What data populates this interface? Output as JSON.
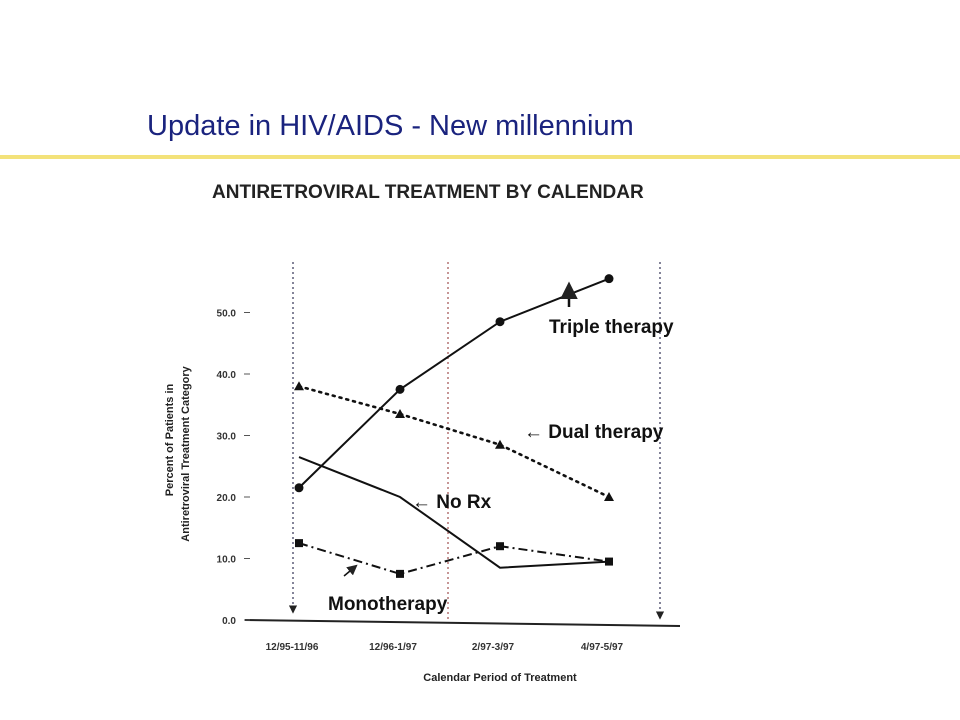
{
  "slide": {
    "title": "Update in HIV/AIDS - New millennium",
    "accent_color": "#f3e27a",
    "title_color": "#1a237e"
  },
  "chart_data": {
    "type": "line",
    "title": "ANTIRETROVIRAL TREATMENT BY CALENDAR",
    "xlabel": "Calendar Period of Treatment",
    "ylabel": "Percent of Patients in Antiretroviral Treatment Category",
    "ylabel_lines": [
      "Percent of Patients in",
      "Antiretroviral Treatment Category"
    ],
    "categories": [
      "12/95-11/96",
      "12/96-1/97",
      "2/97-3/97",
      "4/97-5/97"
    ],
    "yticks": [
      "0.0",
      "10.0",
      "20.0",
      "30.0",
      "40.0",
      "50.0"
    ],
    "ylim": [
      0,
      55
    ],
    "grid": false,
    "series": [
      {
        "name": "Triple therapy",
        "label": "Triple therapy",
        "marker": "circle",
        "line": "solid",
        "points": [
          [
            0,
            21.5
          ],
          [
            1,
            37.5
          ],
          [
            2,
            48.5
          ],
          [
            3,
            55.5
          ]
        ]
      },
      {
        "name": "Dual therapy",
        "label": "← Dual therapy",
        "marker": "triangle",
        "line": "dotted",
        "points": [
          [
            0,
            38
          ],
          [
            1,
            33.5
          ],
          [
            2,
            28.5
          ],
          [
            3,
            20
          ]
        ]
      },
      {
        "name": "No Rx",
        "label": "← No Rx",
        "marker": "none",
        "line": "solid",
        "points": [
          [
            0,
            26.5
          ],
          [
            1,
            20
          ],
          [
            2,
            8.5
          ],
          [
            3,
            9.5
          ]
        ]
      },
      {
        "name": "Monotherapy",
        "label": "Monotherapy",
        "marker": "square",
        "line": "dashdot",
        "points": [
          [
            0,
            12.5
          ],
          [
            1,
            7.5
          ],
          [
            2,
            12
          ],
          [
            3,
            9.5
          ]
        ]
      }
    ]
  }
}
